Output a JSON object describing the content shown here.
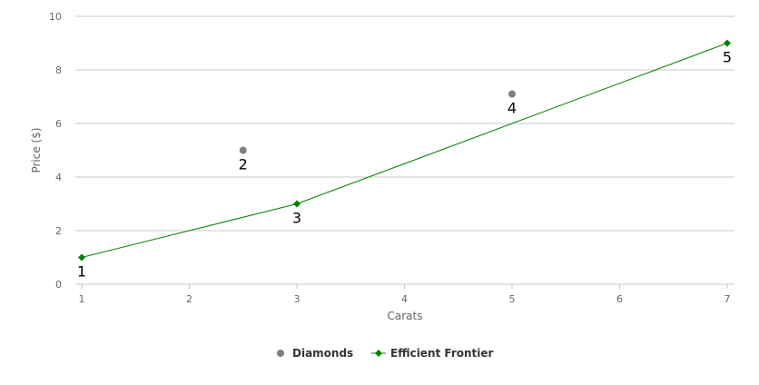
{
  "chart_data": {
    "type": "scatter",
    "title": "",
    "xlabel": "Carats",
    "ylabel": "Price ($)",
    "xlim": [
      1,
      7
    ],
    "ylim": [
      0,
      10
    ],
    "x_ticks": [
      "1",
      "2",
      "3",
      "4",
      "5",
      "6",
      "7"
    ],
    "y_ticks": [
      "0",
      "2",
      "4",
      "6",
      "8",
      "10"
    ],
    "grid": "horizontal",
    "legend_position": "bottom-center",
    "series": [
      {
        "name": "Diamonds",
        "type": "scatter",
        "color": "#808080",
        "marker": "circle",
        "points": [
          {
            "x": 2.5,
            "y": 5,
            "label": "2"
          },
          {
            "x": 5,
            "y": 7.1,
            "label": "4"
          }
        ]
      },
      {
        "name": "Efficient Frontier",
        "type": "line",
        "color": "#008000",
        "marker": "diamond",
        "points": [
          {
            "x": 1,
            "y": 1,
            "label": "1"
          },
          {
            "x": 3,
            "y": 3,
            "label": "3"
          },
          {
            "x": 7,
            "y": 9,
            "label": "5"
          }
        ]
      }
    ]
  }
}
